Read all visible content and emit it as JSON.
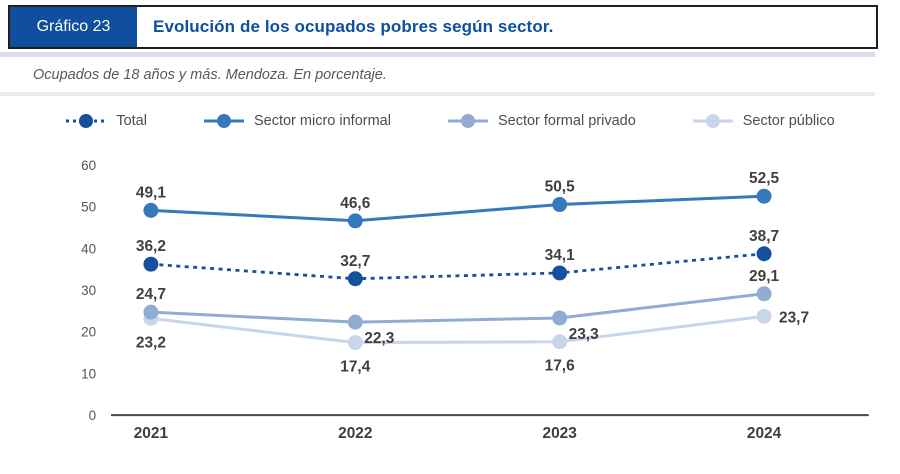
{
  "header": {
    "tag": "Gráfico 23",
    "title": "Evolución de los ocupados pobres según sector."
  },
  "subtitle": "Ocupados de 18 años y más. Mendoza. En porcentaje.",
  "colors": {
    "header_box": "#104F9F",
    "header_title_text": "#0E4F9E",
    "axis_line": "#4A4A4B",
    "tick_text": "#545454",
    "data_label_text": "#404040",
    "x_label_text": "#3E3E40"
  },
  "chart_data": {
    "type": "line",
    "title": "Evolución de los ocupados pobres según sector.",
    "subtitle": "Ocupados de 18 años y más. Mendoza. En porcentaje.",
    "xlabel": "",
    "ylabel": "",
    "categories": [
      "2021",
      "2022",
      "2023",
      "2024"
    ],
    "ylim": [
      0,
      60
    ],
    "yticks": [
      0,
      10,
      20,
      30,
      40,
      50,
      60
    ],
    "grid": false,
    "legend_position": "top",
    "series": [
      {
        "name": "Total",
        "color": "#14509D",
        "dash": true,
        "values": [
          36.2,
          32.7,
          34.1,
          38.7
        ],
        "labels": [
          "36,2",
          "32,7",
          "34,1",
          "38,7"
        ],
        "label_pos": [
          "above",
          "above",
          "above",
          "above"
        ]
      },
      {
        "name": "Sector micro informal",
        "color": "#3579BC",
        "dash": false,
        "values": [
          49.1,
          46.6,
          50.5,
          52.5
        ],
        "labels": [
          "49,1",
          "46,6",
          "50,5",
          "52,5"
        ],
        "label_pos": [
          "above",
          "above",
          "above",
          "above"
        ]
      },
      {
        "name": "Sector formal privado",
        "color": "#92ABD3",
        "dash": false,
        "values": [
          24.7,
          22.3,
          23.3,
          29.1
        ],
        "labels": [
          "24,7",
          "22,3",
          "23,3",
          "29,1"
        ],
        "label_pos": [
          "above",
          "below-right",
          "below-right",
          "above"
        ]
      },
      {
        "name": "Sector público",
        "color": "#C9D6EA",
        "dash": false,
        "values": [
          23.2,
          17.4,
          17.6,
          23.7
        ],
        "labels": [
          "23,2",
          "17,4",
          "17,6",
          "23,7"
        ],
        "label_pos": [
          "below",
          "below",
          "below",
          "right"
        ]
      }
    ]
  }
}
